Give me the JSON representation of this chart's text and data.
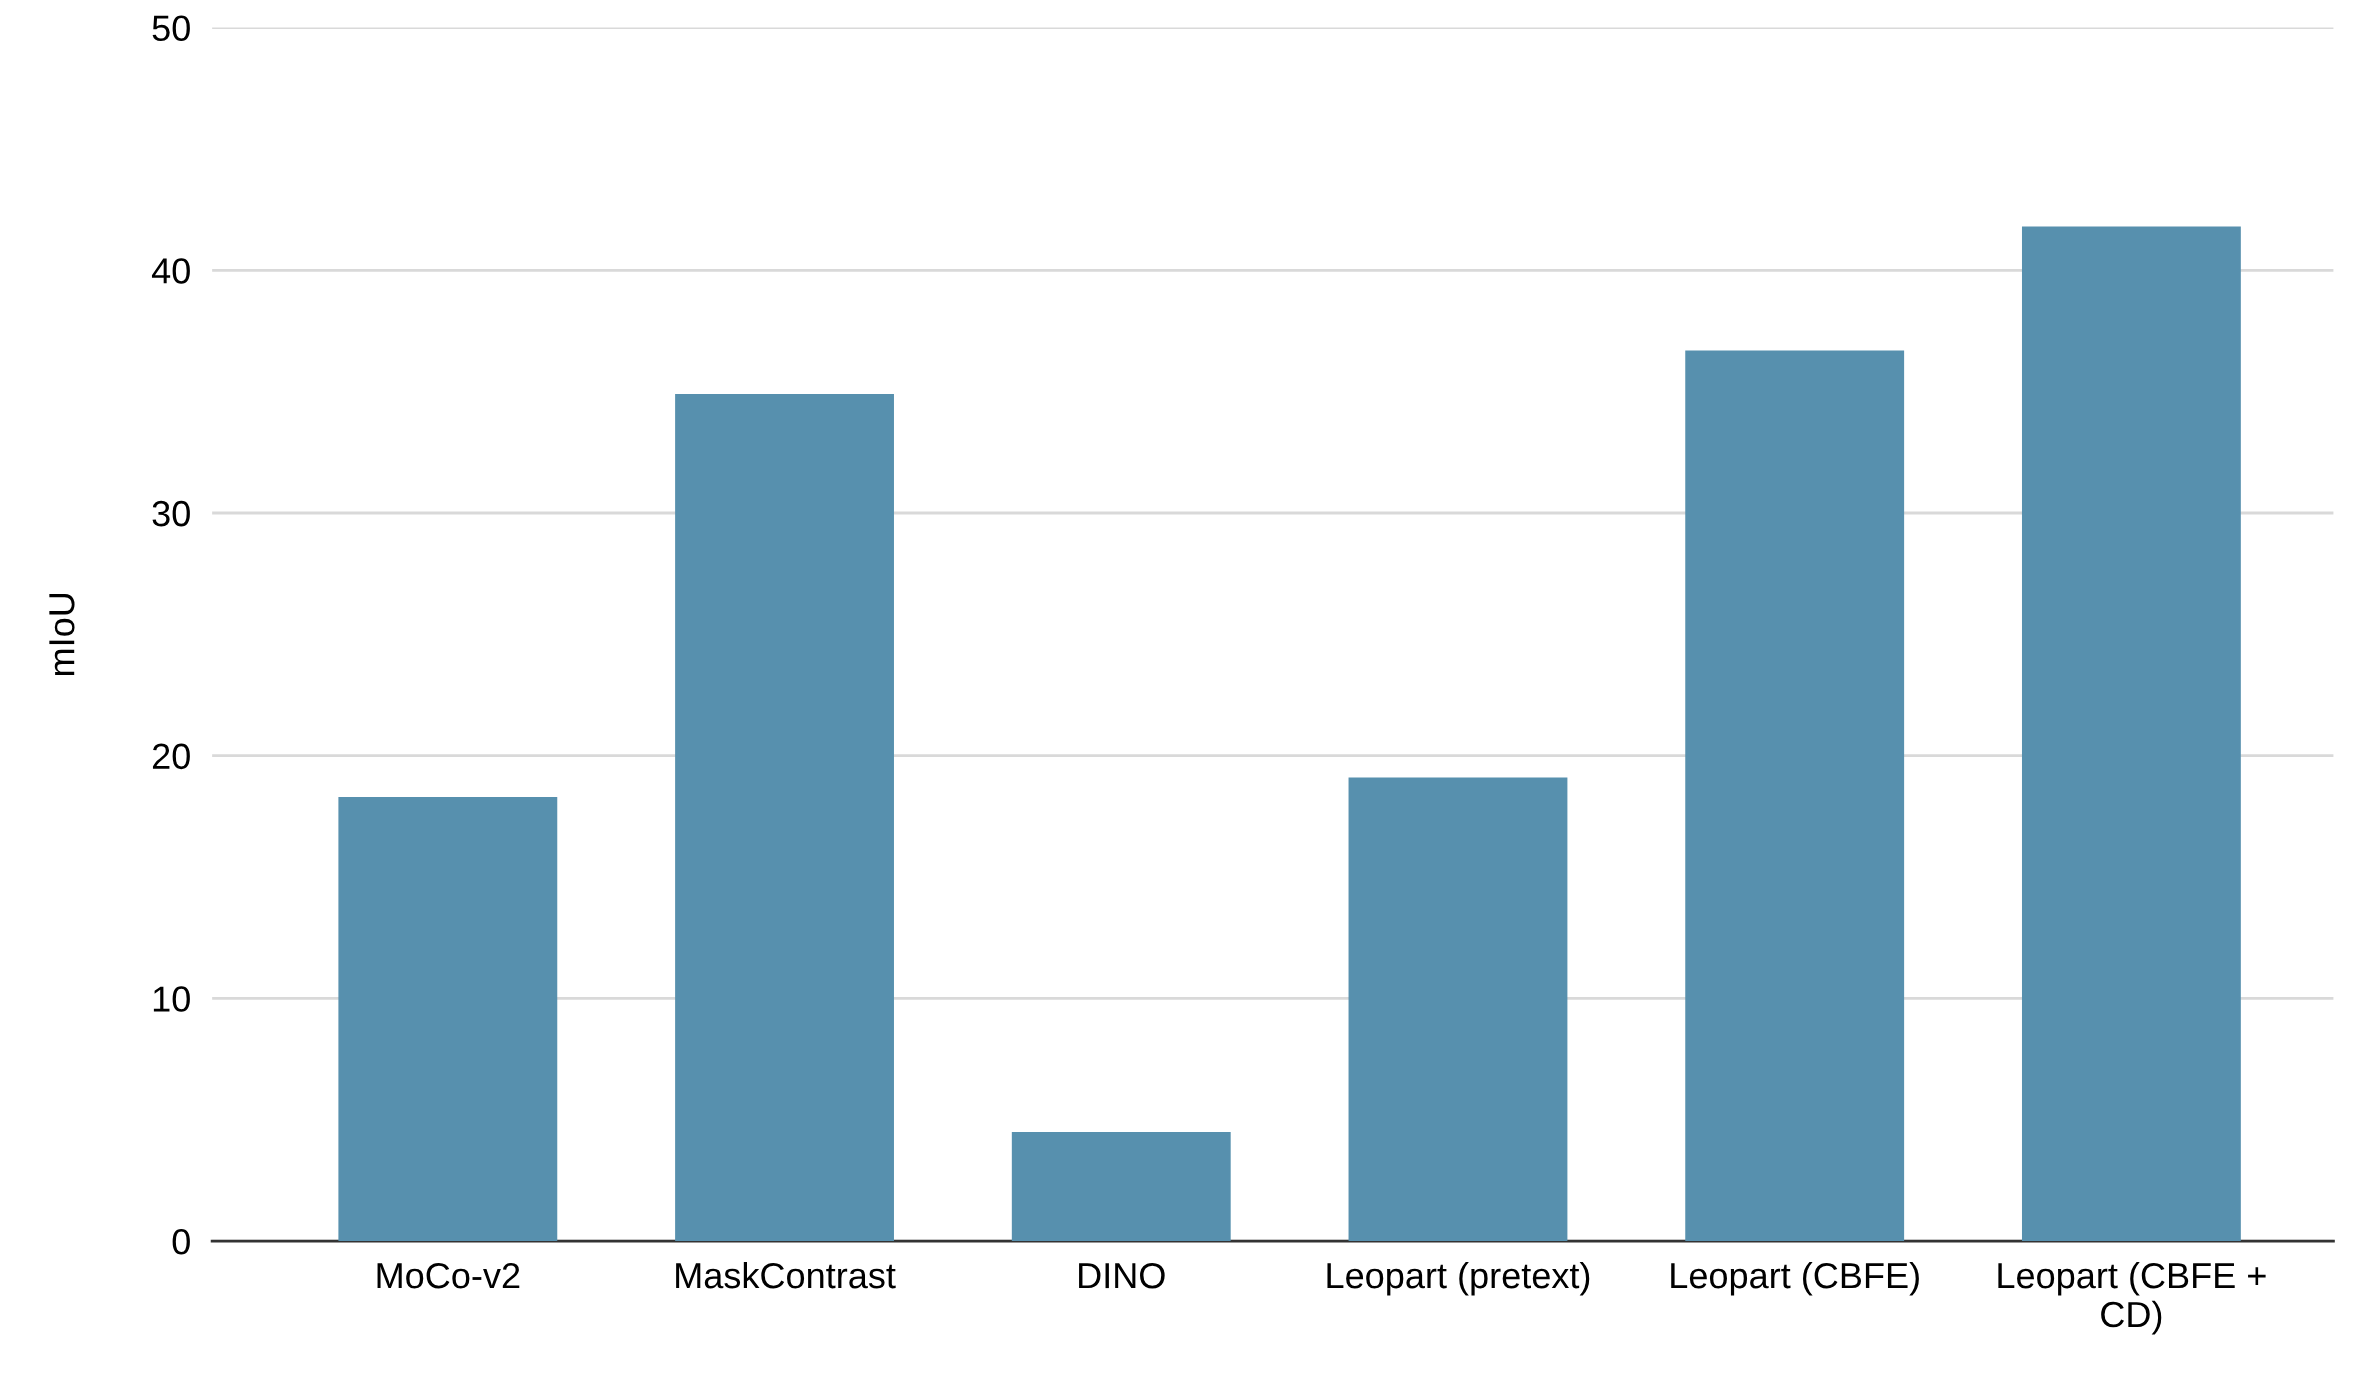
{
  "chart_data": {
    "type": "bar",
    "ylabel": "mIoU",
    "categories": [
      "MoCo-v2",
      "MaskContrast",
      "DINO",
      "Leopart (pretext)",
      "Leopart (CBFE)",
      "Leopart (CBFE +\nCD)"
    ],
    "values": [
      18.3,
      34.9,
      4.5,
      19.1,
      36.7,
      41.8
    ],
    "color": "#5790ae",
    "ylim": [
      0,
      50
    ],
    "yticks": [
      0,
      10,
      20,
      30,
      40,
      50
    ],
    "grid": "y",
    "legend": false
  }
}
